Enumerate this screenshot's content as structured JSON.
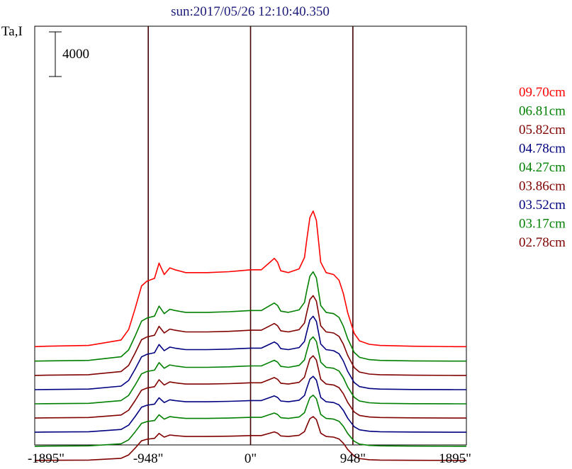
{
  "chart_data": {
    "type": "line",
    "title": "sun:2017/05/26 12:10:40.350",
    "ylabel": "Ta,I",
    "xlabel": "",
    "xlim": [
      -2000,
      2000
    ],
    "x_ticks": [
      {
        "value": -1895,
        "label": "-1895\""
      },
      {
        "value": -948,
        "label": "-948\""
      },
      {
        "value": 0,
        "label": "0\""
      },
      {
        "value": 948,
        "label": "948\""
      },
      {
        "value": 1895,
        "label": "1895\""
      }
    ],
    "vertical_lines": [
      -948,
      0,
      948
    ],
    "scale_bar": {
      "label": "4000",
      "value": 4000
    },
    "grid": false,
    "legend_position": "right",
    "profile_x": [
      -2000,
      -1895,
      -1500,
      -1200,
      -1130,
      -1070,
      -1010,
      -960,
      -890,
      -848,
      -800,
      -748,
      -700,
      -600,
      -400,
      -200,
      -100,
      0,
      100,
      180,
      220,
      250,
      280,
      350,
      450,
      500,
      520,
      550,
      580,
      610,
      650,
      700,
      770,
      820,
      860,
      900,
      960,
      1010,
      1100,
      1200,
      1500,
      1895,
      2000
    ],
    "series": [
      {
        "name": "09.70cm",
        "color": "#ff0000",
        "offset": 7730,
        "amp": 1.7,
        "values": [
          0,
          20,
          60,
          350,
          900,
          2000,
          3200,
          3450,
          3600,
          4400,
          3800,
          4150,
          4050,
          3900,
          3900,
          3950,
          4000,
          4050,
          4050,
          4450,
          4650,
          4450,
          4000,
          3900,
          4100,
          4700,
          5600,
          6800,
          7150,
          6650,
          4450,
          3900,
          3800,
          3500,
          2800,
          1800,
          700,
          300,
          120,
          60,
          20,
          0,
          0
        ]
      },
      {
        "name": "06.81cm",
        "color": "#008000",
        "offset": 6430,
        "amp": 1.12,
        "values": [
          0,
          20,
          60,
          350,
          900,
          2000,
          3200,
          3450,
          3600,
          4400,
          3800,
          4150,
          4050,
          3900,
          3900,
          3950,
          4000,
          4050,
          4050,
          4450,
          4650,
          4450,
          4000,
          3900,
          4100,
          4700,
          5600,
          6800,
          7150,
          6650,
          4450,
          3900,
          3800,
          3500,
          2800,
          1800,
          700,
          300,
          120,
          60,
          20,
          0,
          0
        ]
      },
      {
        "name": "05.82cm",
        "color": "#800000",
        "offset": 5150,
        "amp": 1.0,
        "values": [
          0,
          20,
          60,
          350,
          900,
          2000,
          3200,
          3450,
          3600,
          4400,
          3800,
          4150,
          4050,
          3900,
          3900,
          3950,
          4000,
          4050,
          4050,
          4450,
          4650,
          4450,
          4000,
          3900,
          4100,
          4700,
          5600,
          6800,
          7150,
          6650,
          4450,
          3900,
          3800,
          3500,
          2800,
          1800,
          700,
          300,
          120,
          60,
          20,
          0,
          0
        ]
      },
      {
        "name": "04.78cm",
        "color": "#000080",
        "offset": 3870,
        "amp": 0.92,
        "values": [
          0,
          20,
          60,
          350,
          900,
          2000,
          3200,
          3450,
          3600,
          4400,
          3800,
          4150,
          4050,
          3900,
          3900,
          3950,
          4000,
          4050,
          4050,
          4450,
          4650,
          4450,
          4000,
          3900,
          4100,
          4700,
          5600,
          6800,
          7150,
          6650,
          4450,
          3900,
          3800,
          3500,
          2800,
          1800,
          700,
          300,
          120,
          60,
          20,
          0,
          0
        ]
      },
      {
        "name": "04.27cm",
        "color": "#008000",
        "offset": 2600,
        "amp": 0.84,
        "values": [
          0,
          20,
          60,
          350,
          900,
          2000,
          3200,
          3450,
          3600,
          4400,
          3800,
          4150,
          4050,
          3900,
          3900,
          3950,
          4000,
          4050,
          4050,
          4450,
          4650,
          4450,
          4000,
          3900,
          4100,
          4700,
          5600,
          6800,
          7150,
          6650,
          4450,
          3900,
          3800,
          3500,
          2800,
          1800,
          700,
          300,
          120,
          60,
          20,
          0,
          0
        ]
      },
      {
        "name": "03.86cm",
        "color": "#800000",
        "offset": 1330,
        "amp": 0.78,
        "values": [
          0,
          20,
          60,
          350,
          900,
          2000,
          3200,
          3450,
          3600,
          4400,
          3800,
          4150,
          4050,
          3900,
          3900,
          3950,
          4000,
          4050,
          4050,
          4450,
          4650,
          4450,
          4000,
          3900,
          4100,
          4700,
          5600,
          6800,
          7150,
          6650,
          4450,
          3900,
          3800,
          3500,
          2800,
          1800,
          700,
          300,
          120,
          60,
          20,
          0,
          0
        ]
      },
      {
        "name": "03.52cm",
        "color": "#000080",
        "offset": 60,
        "amp": 0.7,
        "values": [
          0,
          20,
          60,
          350,
          900,
          2000,
          3200,
          3450,
          3600,
          4400,
          3800,
          4150,
          4050,
          3900,
          3900,
          3950,
          4000,
          4050,
          4050,
          4450,
          4650,
          4450,
          4000,
          3900,
          4100,
          4700,
          5600,
          6800,
          7150,
          6650,
          4450,
          3900,
          3800,
          3500,
          2800,
          1800,
          700,
          300,
          120,
          60,
          20,
          0,
          0
        ]
      },
      {
        "name": "03.17cm",
        "color": "#008000",
        "offset": -1200,
        "amp": 0.64,
        "values": [
          0,
          20,
          60,
          350,
          900,
          2000,
          3200,
          3450,
          3600,
          4400,
          3800,
          4150,
          4050,
          3900,
          3900,
          3950,
          4000,
          4050,
          4050,
          4450,
          4650,
          4450,
          4000,
          3900,
          4100,
          4700,
          5600,
          6800,
          7150,
          6650,
          4450,
          3900,
          3800,
          3500,
          2800,
          1800,
          700,
          300,
          120,
          60,
          20,
          0,
          0
        ]
      },
      {
        "name": "02.78cm",
        "color": "#800000",
        "offset": -2470,
        "amp": 0.55,
        "values": [
          0,
          20,
          60,
          350,
          900,
          2000,
          3200,
          3450,
          3600,
          4400,
          3800,
          4150,
          4050,
          3900,
          3900,
          3950,
          4000,
          4050,
          4050,
          4450,
          4650,
          4450,
          4000,
          3900,
          4100,
          4700,
          5600,
          6800,
          7150,
          6650,
          4450,
          3900,
          3800,
          3500,
          2800,
          1800,
          700,
          300,
          120,
          60,
          20,
          0,
          0
        ]
      }
    ]
  }
}
